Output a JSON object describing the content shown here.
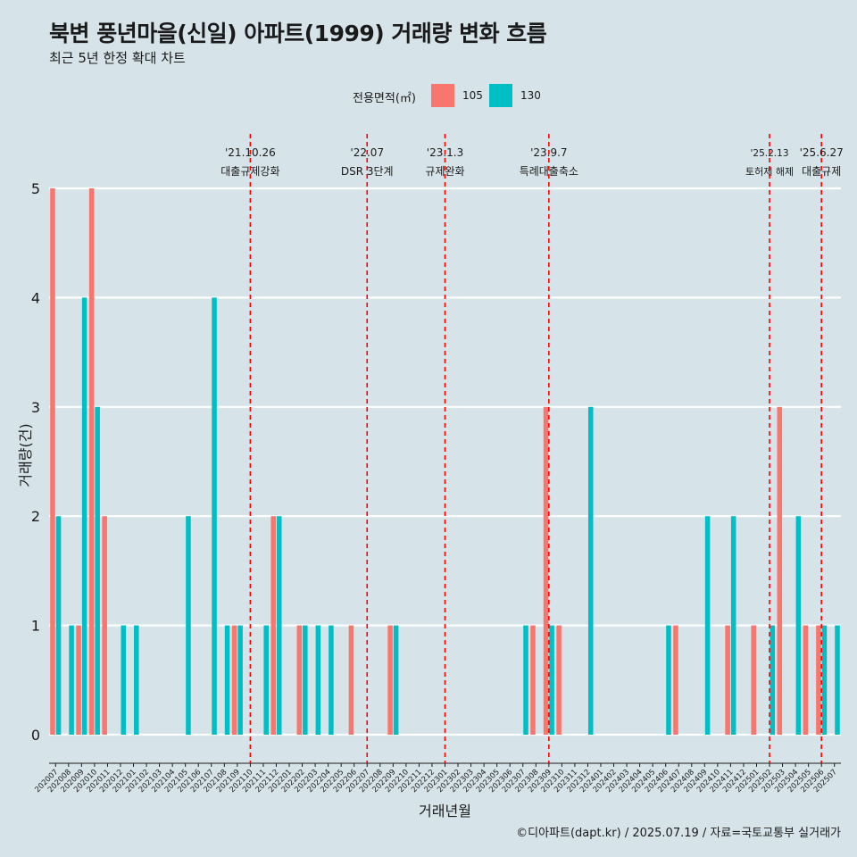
{
  "title": "북변 풍년마을(신일) 아파트(1999) 거래량 변화 흐름",
  "subtitle": "최근 5년 한정 확대 차트",
  "caption": "©디아파트(dapt.kr) / 2025.07.19 / 자료=국토교통부 실거래가",
  "legend": {
    "title": "전용면적(㎡)",
    "items": [
      {
        "label": "105",
        "color": "#f8766d"
      },
      {
        "label": "130",
        "color": "#00bfc4"
      }
    ]
  },
  "chart_data": {
    "type": "bar",
    "xlabel": "거래년월",
    "ylabel": "거래량(건)",
    "ylim": [
      0,
      5
    ],
    "yticks": [
      0,
      1,
      2,
      3,
      4,
      5
    ],
    "grid": true,
    "legend_position": "top",
    "categories": [
      "202007",
      "202008",
      "202009",
      "202010",
      "202011",
      "202012",
      "202101",
      "202102",
      "202103",
      "202104",
      "202105",
      "202106",
      "202107",
      "202108",
      "202109",
      "202110",
      "202111",
      "202112",
      "202201",
      "202202",
      "202203",
      "202204",
      "202205",
      "202206",
      "202207",
      "202208",
      "202209",
      "202210",
      "202211",
      "202212",
      "202301",
      "202302",
      "202303",
      "202304",
      "202305",
      "202306",
      "202307",
      "202308",
      "202309",
      "202310",
      "202311",
      "202312",
      "202401",
      "202402",
      "202403",
      "202404",
      "202405",
      "202406",
      "202407",
      "202408",
      "202409",
      "202410",
      "202411",
      "202412",
      "202501",
      "202502",
      "202503",
      "202504",
      "202505",
      "202506",
      "202507"
    ],
    "series": [
      {
        "name": "105",
        "color": "#f8766d",
        "values": [
          5,
          0,
          1,
          5,
          2,
          0,
          0,
          0,
          0,
          0,
          0,
          0,
          0,
          0,
          1,
          0,
          0,
          2,
          0,
          1,
          0,
          0,
          0,
          1,
          0,
          0,
          1,
          0,
          0,
          0,
          0,
          0,
          0,
          0,
          0,
          0,
          0,
          1,
          3,
          1,
          0,
          0,
          0,
          0,
          0,
          0,
          0,
          0,
          1,
          0,
          0,
          0,
          1,
          0,
          1,
          0,
          3,
          0,
          1,
          1,
          0
        ]
      },
      {
        "name": "130",
        "color": "#00bfc4",
        "values": [
          2,
          1,
          4,
          3,
          0,
          1,
          1,
          0,
          0,
          0,
          2,
          0,
          4,
          1,
          1,
          0,
          1,
          2,
          0,
          1,
          1,
          1,
          0,
          0,
          0,
          0,
          1,
          0,
          0,
          0,
          0,
          0,
          0,
          0,
          0,
          0,
          1,
          0,
          1,
          0,
          0,
          3,
          0,
          0,
          0,
          0,
          0,
          1,
          0,
          0,
          2,
          0,
          2,
          0,
          0,
          1,
          0,
          2,
          0,
          1,
          1
        ]
      }
    ],
    "annotations": [
      {
        "category": "202110",
        "date": "'21.10.26",
        "label": "대출규제강화"
      },
      {
        "category": "202207",
        "date": "'22.07",
        "label": "DSR 3단계"
      },
      {
        "category": "202301",
        "date": "'23.1.3",
        "label": "규제완화"
      },
      {
        "category": "202309",
        "date": "'23.9.7",
        "label": "특례대출축소"
      },
      {
        "category": "202502",
        "date": "'25.2.13",
        "label": "토허제 해제"
      },
      {
        "category": "202506",
        "date": "'25.6.27",
        "label": "대출규제"
      }
    ],
    "annotation_color": "#ff0000"
  }
}
